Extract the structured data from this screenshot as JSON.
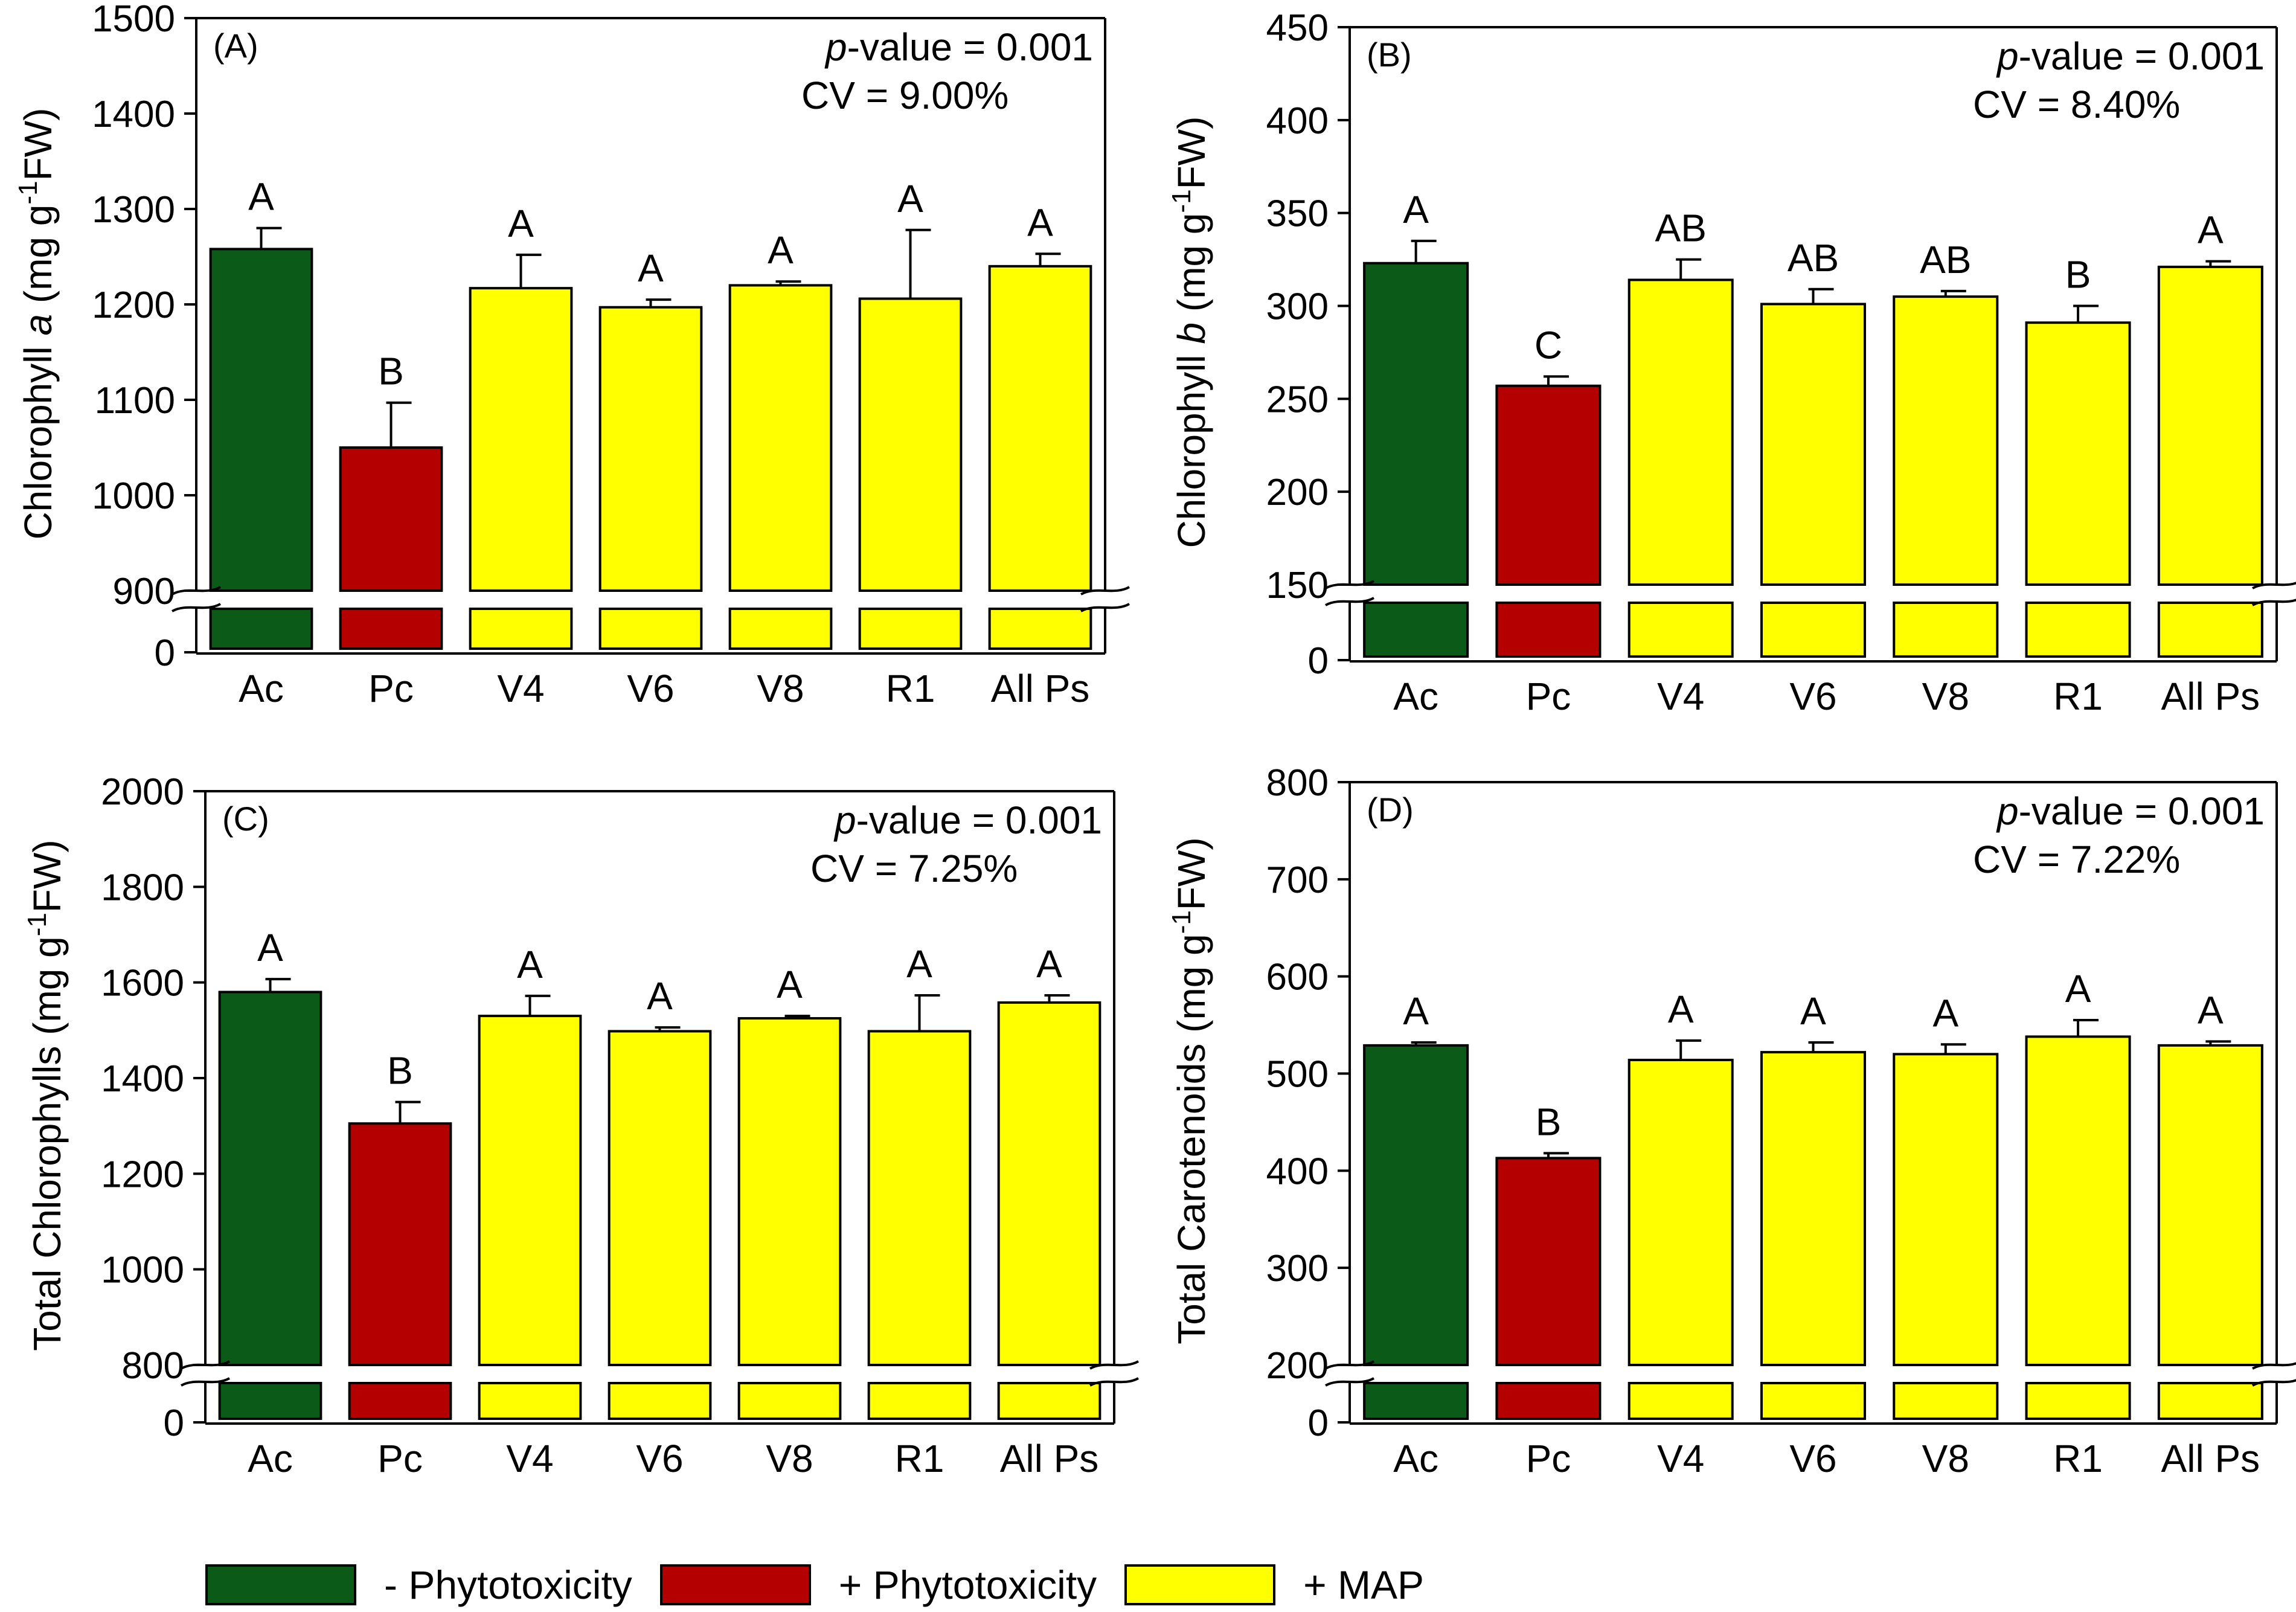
{
  "colors": {
    "green": "#0b5a17",
    "red": "#b50000",
    "yellow": "#ffff00"
  },
  "legend": [
    {
      "label": "- Phytotoxicity",
      "color": "#0b5a17"
    },
    {
      "label": "+ Phytotoxicity",
      "color": "#b50000"
    },
    {
      "label": "+ MAP",
      "color": "#ffff00"
    }
  ],
  "chart_data": [
    {
      "type": "bar",
      "panel": "(A)",
      "ylabel_main": "Chlorophyll ",
      "ylabel_italic": "a",
      "ylabel_unit": " (mg g",
      "ylabel_sup": "-1",
      "ylabel_end": "FW)",
      "pvalue_italic": "p",
      "pvalue_rest": "-value = 0.001",
      "cv": "CV = 9.00%",
      "categories": [
        "Ac",
        "Pc",
        "V4",
        "V6",
        "V8",
        "R1",
        "All Ps"
      ],
      "values": [
        1258,
        1050,
        1217,
        1197,
        1220,
        1206,
        1240
      ],
      "errors": [
        22,
        47,
        35,
        8,
        4,
        72,
        13
      ],
      "letters": [
        "A",
        "B",
        "A",
        "A",
        "A",
        "A",
        "A"
      ],
      "bar_colors": [
        "#0b5a17",
        "#b50000",
        "#ffff00",
        "#ffff00",
        "#ffff00",
        "#ffff00",
        "#ffff00"
      ],
      "ylim": [
        900,
        1500
      ],
      "yticks": [
        900,
        1000,
        1100,
        1200,
        1300,
        1400,
        1500
      ],
      "ytick_labels": [
        "900",
        "1000",
        "1100",
        "1200",
        "1300",
        "1400",
        "1500"
      ],
      "axis_break": true,
      "bottom_tick_label": "0"
    },
    {
      "type": "bar",
      "panel": "(B)",
      "ylabel_main": "Chlorophyll ",
      "ylabel_italic": "b",
      "ylabel_unit": " (mg g",
      "ylabel_sup": "-1",
      "ylabel_end": "FW)",
      "pvalue_italic": "p",
      "pvalue_rest": "-value = 0.001",
      "cv": "CV = 8.40%",
      "categories": [
        "Ac",
        "Pc",
        "V4",
        "V6",
        "V8",
        "R1",
        "All Ps"
      ],
      "values": [
        323,
        257,
        314,
        301,
        305,
        291,
        321
      ],
      "errors": [
        12,
        5,
        11,
        8,
        3,
        9,
        3
      ],
      "letters": [
        "A",
        "C",
        "AB",
        "AB",
        "AB",
        "B",
        "A"
      ],
      "bar_colors": [
        "#0b5a17",
        "#b50000",
        "#ffff00",
        "#ffff00",
        "#ffff00",
        "#ffff00",
        "#ffff00"
      ],
      "ylim": [
        150,
        450
      ],
      "yticks": [
        150,
        200,
        250,
        300,
        350,
        400,
        450
      ],
      "ytick_labels": [
        "150",
        "200",
        "250",
        "300",
        "350",
        "400",
        "450"
      ],
      "axis_break": true,
      "bottom_tick_label": "0"
    },
    {
      "type": "bar",
      "panel": "(C)",
      "ylabel_main": "Total Chlorophylls",
      "ylabel_italic": "",
      "ylabel_unit": " (mg g",
      "ylabel_sup": "-1",
      "ylabel_end": "FW)",
      "pvalue_italic": "p",
      "pvalue_rest": "-value = 0.001",
      "cv": "CV = 7.25%",
      "categories": [
        "Ac",
        "Pc",
        "V4",
        "V6",
        "V8",
        "R1",
        "All Ps"
      ],
      "values": [
        1580,
        1305,
        1530,
        1498,
        1525,
        1498,
        1558
      ],
      "errors": [
        27,
        45,
        42,
        8,
        5,
        75,
        15
      ],
      "letters": [
        "A",
        "B",
        "A",
        "A",
        "A",
        "A",
        "A"
      ],
      "bar_colors": [
        "#0b5a17",
        "#b50000",
        "#ffff00",
        "#ffff00",
        "#ffff00",
        "#ffff00",
        "#ffff00"
      ],
      "ylim": [
        800,
        2000
      ],
      "yticks": [
        800,
        1000,
        1200,
        1400,
        1600,
        1800,
        2000
      ],
      "ytick_labels": [
        "800",
        "1000",
        "1200",
        "1400",
        "1600",
        "1800",
        "2000"
      ],
      "axis_break": true,
      "bottom_tick_label": "0"
    },
    {
      "type": "bar",
      "panel": "(D)",
      "ylabel_main": "Total Carotenoids",
      "ylabel_italic": "",
      "ylabel_unit": " (mg g",
      "ylabel_sup": "-1",
      "ylabel_end": "FW)",
      "pvalue_italic": "p",
      "pvalue_rest": "-value = 0.001",
      "cv": "CV = 7.22%",
      "categories": [
        "Ac",
        "Pc",
        "V4",
        "V6",
        "V8",
        "R1",
        "All Ps"
      ],
      "values": [
        529,
        413,
        514,
        522,
        520,
        538,
        529
      ],
      "errors": [
        3,
        5,
        20,
        10,
        10,
        17,
        4
      ],
      "letters": [
        "A",
        "B",
        "A",
        "A",
        "A",
        "A",
        "A"
      ],
      "bar_colors": [
        "#0b5a17",
        "#b50000",
        "#ffff00",
        "#ffff00",
        "#ffff00",
        "#ffff00",
        "#ffff00"
      ],
      "ylim": [
        200,
        800
      ],
      "yticks": [
        200,
        300,
        400,
        500,
        600,
        700,
        800
      ],
      "ytick_labels": [
        "200",
        "300",
        "400",
        "500",
        "600",
        "700",
        "800"
      ],
      "axis_break": true,
      "bottom_tick_label": "0"
    }
  ]
}
